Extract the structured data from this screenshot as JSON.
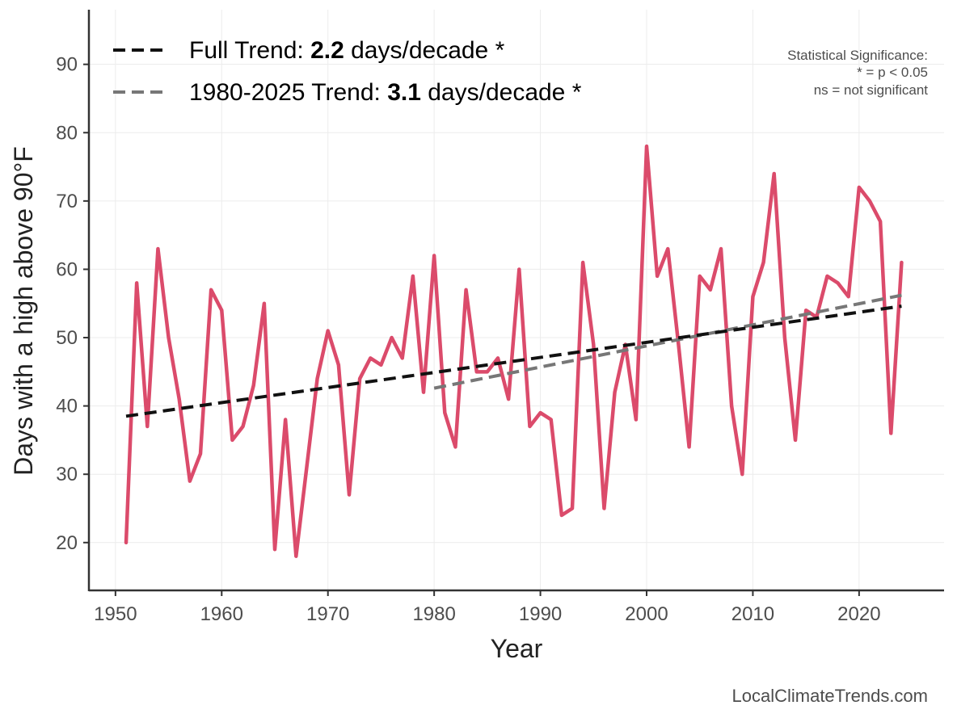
{
  "chart_data": {
    "type": "line",
    "title": "",
    "xlabel": "Year",
    "ylabel": "Days with a high above 90°F",
    "xlim": [
      1947.5,
      2028.0
    ],
    "ylim": [
      13,
      98
    ],
    "x_ticks": [
      1950,
      1960,
      1970,
      1980,
      1990,
      2000,
      2010,
      2020
    ],
    "y_ticks": [
      20,
      30,
      40,
      50,
      60,
      70,
      80,
      90
    ],
    "grid": true,
    "colors": {
      "series": "#db4b6b",
      "full_trend": "#111111",
      "recent_trend": "#777777",
      "axis": "#333333",
      "grid": "#ececec"
    },
    "series": [
      {
        "name": "Days with a high above 90°F",
        "x": [
          1951,
          1952,
          1953,
          1954,
          1955,
          1956,
          1957,
          1958,
          1959,
          1960,
          1961,
          1962,
          1963,
          1964,
          1965,
          1966,
          1967,
          1968,
          1969,
          1970,
          1971,
          1972,
          1973,
          1974,
          1975,
          1976,
          1977,
          1978,
          1979,
          1980,
          1981,
          1982,
          1983,
          1984,
          1985,
          1986,
          1987,
          1988,
          1989,
          1990,
          1991,
          1992,
          1993,
          1994,
          1995,
          1996,
          1997,
          1998,
          1999,
          2000,
          2001,
          2002,
          2003,
          2004,
          2005,
          2006,
          2007,
          2008,
          2009,
          2010,
          2011,
          2012,
          2013,
          2014,
          2015,
          2016,
          2017,
          2018,
          2019,
          2020,
          2021,
          2022,
          2023,
          2024
        ],
        "values": [
          20,
          58,
          37,
          63,
          50,
          41,
          29,
          33,
          57,
          54,
          35,
          37,
          43,
          55,
          19,
          38,
          18,
          31,
          44,
          51,
          46,
          27,
          44,
          47,
          46,
          50,
          47,
          59,
          42,
          62,
          39,
          34,
          57,
          45,
          45,
          47,
          41,
          60,
          37,
          39,
          38,
          24,
          25,
          61,
          49,
          25,
          42,
          49,
          38,
          78,
          59,
          63,
          49,
          34,
          59,
          57,
          63,
          40,
          30,
          56,
          61,
          74,
          50,
          35,
          54,
          53,
          59,
          58,
          56,
          72,
          70,
          67,
          36,
          61
        ]
      }
    ],
    "trends": [
      {
        "name": "Full Trend",
        "label_prefix": "Full Trend: ",
        "rate": "2.2",
        "label_suffix": " days/decade *",
        "x": [
          1951,
          2024
        ],
        "values": [
          38.5,
          54.6
        ]
      },
      {
        "name": "1980-2025 Trend",
        "label_prefix": "1980-2025 Trend: ",
        "rate": "3.1",
        "label_suffix": " days/decade *",
        "x": [
          1980,
          2024
        ],
        "values": [
          42.6,
          56.2
        ]
      }
    ],
    "legend": "top-left",
    "significance_note": [
      "Statistical Significance:",
      "* = p < 0.05",
      "ns = not significant"
    ]
  },
  "credit": "LocalClimateTrends.com"
}
